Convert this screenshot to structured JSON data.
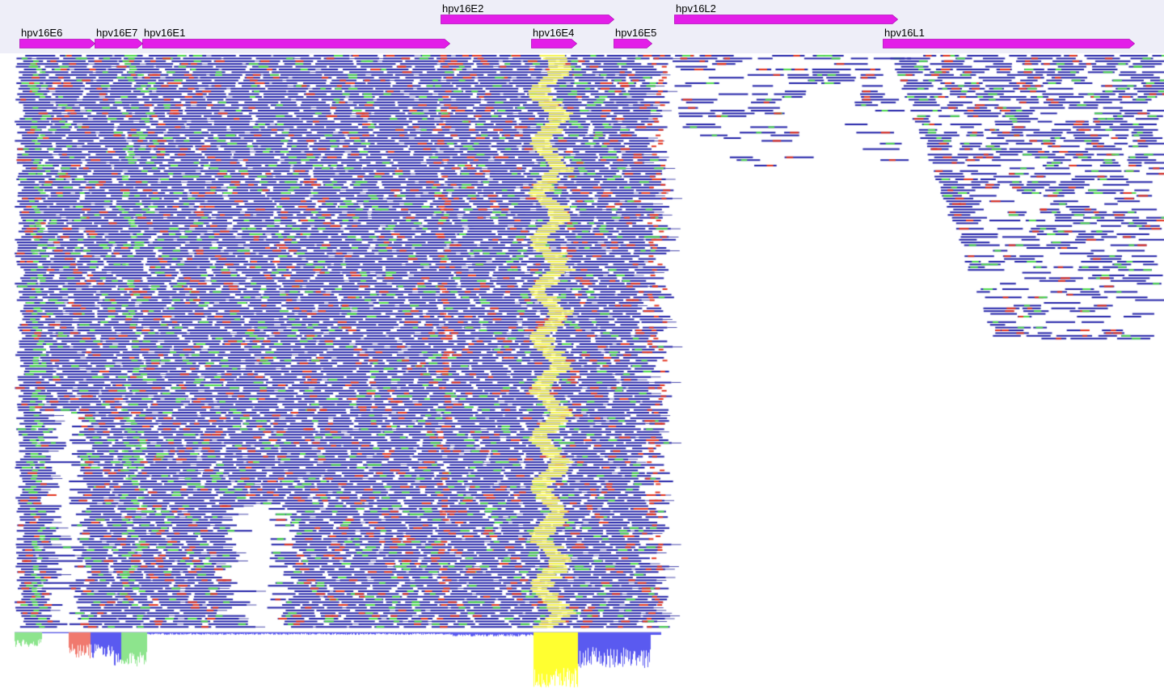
{
  "viewer": {
    "colors": {
      "annotation_band": "#eeeef8",
      "gene_fill": "#e31ee8",
      "gene_fill_light": "#f24cf4",
      "read": "#2323a8",
      "read_connector": "#20209a",
      "mismatch_green": "#4cd94c",
      "mismatch_red": "#e3331e",
      "highlight_yellow": "#f4f24c",
      "coverage_blue": "#5a5af0",
      "coverage_green": "#8de48d",
      "coverage_red": "#f0796e",
      "coverage_yellow": "#ffff30"
    },
    "genes": [
      {
        "label": "hpv16E6",
        "row": 2
      },
      {
        "label": "hpv16E7",
        "row": 2
      },
      {
        "label": "hpv16E1",
        "row": 2
      },
      {
        "label": "hpv16E2",
        "row": 1
      },
      {
        "label": "hpv16E4",
        "row": 2
      },
      {
        "label": "hpv16E5",
        "row": 2
      },
      {
        "label": "hpv16L2",
        "row": 1
      },
      {
        "label": "hpv16L1",
        "row": 2
      }
    ]
  }
}
